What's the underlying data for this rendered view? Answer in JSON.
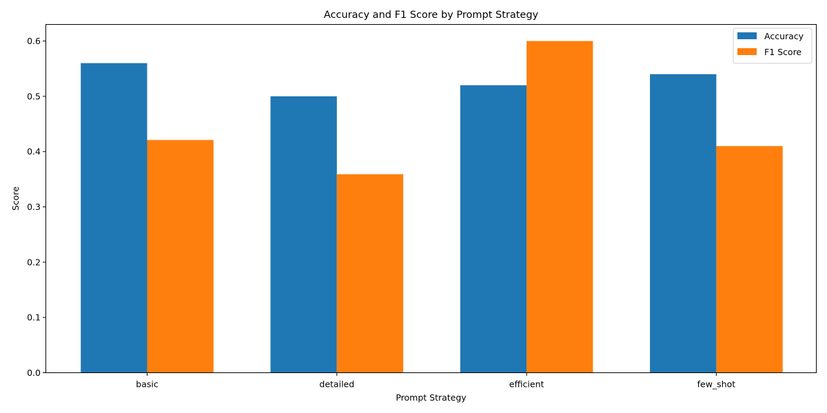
{
  "chart_data": {
    "type": "bar",
    "title": "Accuracy and F1 Score by Prompt Strategy",
    "xlabel": "Prompt Strategy",
    "ylabel": "Score",
    "categories": [
      "basic",
      "detailed",
      "efficient",
      "few_shot"
    ],
    "series": [
      {
        "name": "Accuracy",
        "color": "#1f77b4",
        "values": [
          0.56,
          0.5,
          0.52,
          0.54
        ]
      },
      {
        "name": "F1 Score",
        "color": "#ff7f0e",
        "values": [
          0.421,
          0.359,
          0.6,
          0.41
        ]
      }
    ],
    "ylim": [
      0,
      0.63
    ],
    "yticks": [
      "0.0",
      "0.1",
      "0.2",
      "0.3",
      "0.4",
      "0.5",
      "0.6"
    ],
    "grid": false,
    "legend_position": "top-right"
  }
}
